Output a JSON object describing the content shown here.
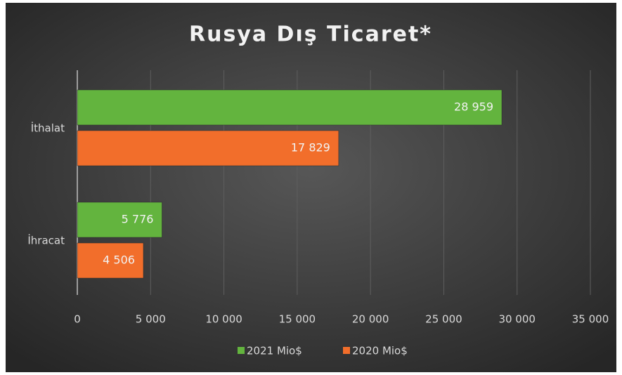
{
  "chart_data": {
    "type": "bar",
    "orientation": "horizontal",
    "title": "Rusya Dış Ticaret*",
    "categories": [
      "İthalat",
      "İhracat"
    ],
    "series": [
      {
        "name": "2021 Mio$",
        "color": "#63b43e",
        "values": [
          28959,
          5776
        ],
        "value_labels": [
          "28 959",
          "5 776"
        ]
      },
      {
        "name": "2020 Mio$",
        "color": "#f26e2b",
        "values": [
          17829,
          4506
        ],
        "value_labels": [
          "17 829",
          "4 506"
        ]
      }
    ],
    "xlim": [
      0,
      35000
    ],
    "xticks": [
      0,
      {
        "value": 5000,
        "label": "5 000"
      },
      {
        "value": 10000,
        "label": "10 000"
      },
      {
        "value": 15000,
        "label": "15 000"
      },
      {
        "value": 20000,
        "label": "20 000"
      },
      {
        "value": 25000,
        "label": "25 000"
      },
      {
        "value": 30000,
        "label": "30 000"
      },
      {
        "value": 35000,
        "label": "35 000"
      }
    ],
    "grid": true,
    "legend": "bottom"
  }
}
